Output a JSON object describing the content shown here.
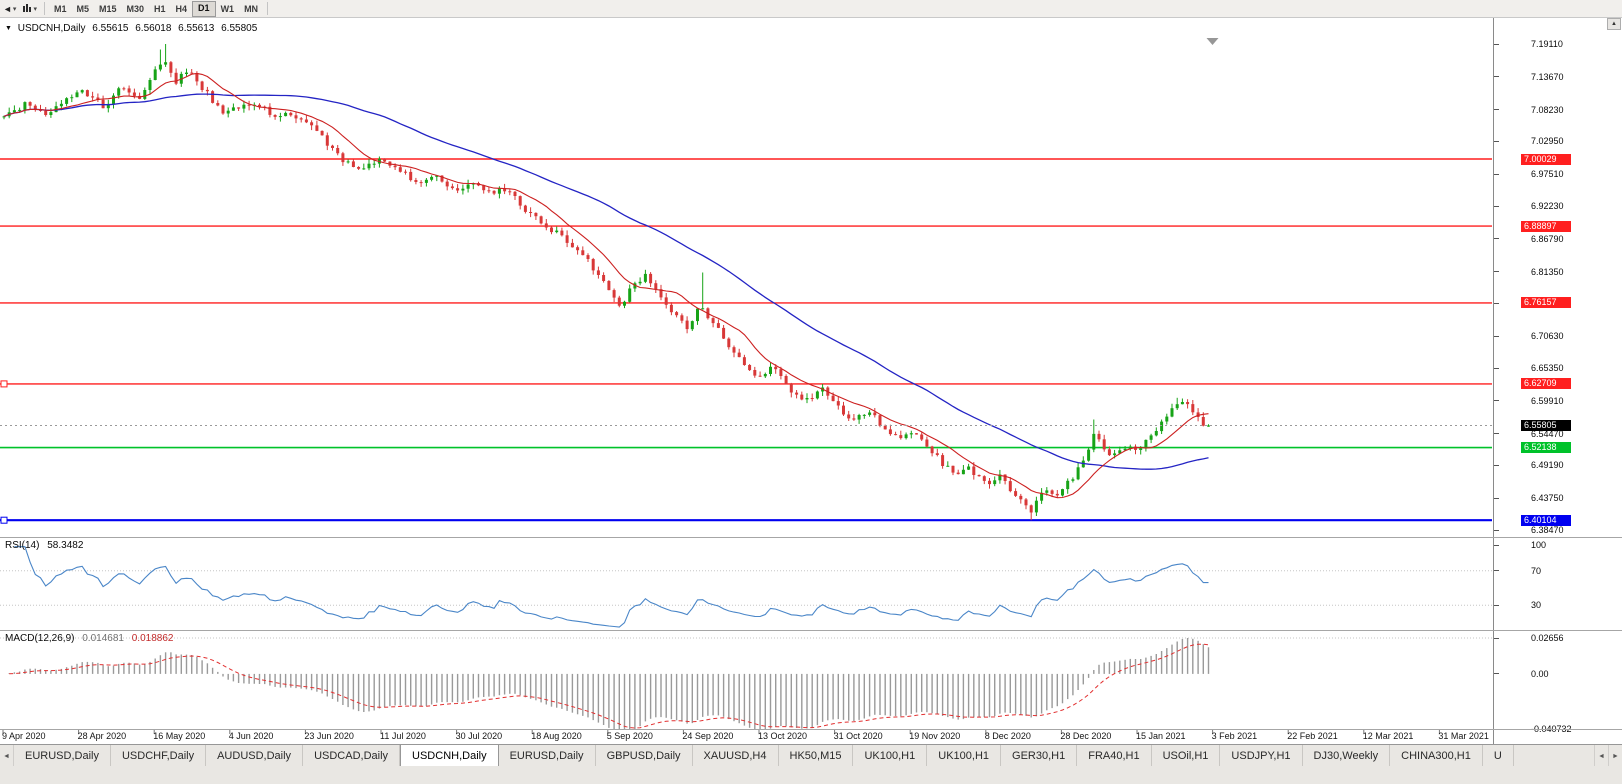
{
  "icons": {
    "dropdown": "▾",
    "title_marker": "▼",
    "scroll_up": "▲",
    "tab_scroll_left": "◄",
    "tab_scroll_right": "►",
    "toolbar_arrow": "◄"
  },
  "toolbar": {
    "timeframes": [
      "M1",
      "M5",
      "M15",
      "M30",
      "H1",
      "H4",
      "D1",
      "W1",
      "MN"
    ],
    "active_timeframe": "D1"
  },
  "chart": {
    "symbol_period": "USDCNH,Daily",
    "open": "6.55615",
    "high": "6.56018",
    "low": "6.55613",
    "close": "6.55805"
  },
  "chart_data": {
    "type": "candlestick",
    "title": "USDCNH,Daily",
    "y_axis": {
      "top_value": 7.1911,
      "bottom_value": 6.3847,
      "ticks": [
        "7.19110",
        "7.13670",
        "7.08230",
        "7.02950",
        "6.97510",
        "6.92230",
        "6.86790",
        "6.81350",
        "6.76070",
        "6.70630",
        "6.65350",
        "6.59910",
        "6.54470",
        "6.49190",
        "6.43750",
        "6.38470"
      ]
    },
    "x_axis": {
      "labels": [
        "9 Apr 2020",
        "28 Apr 2020",
        "16 May 2020",
        "4 Jun 2020",
        "23 Jun 2020",
        "11 Jul 2020",
        "30 Jul 2020",
        "18 Aug 2020",
        "5 Sep 2020",
        "24 Sep 2020",
        "13 Oct 2020",
        "31 Oct 2020",
        "19 Nov 2020",
        "8 Dec 2020",
        "28 Dec 2020",
        "15 Jan 2021",
        "3 Feb 2021",
        "22 Feb 2021",
        "12 Mar 2021",
        "31 Mar 2021"
      ]
    },
    "hlines": [
      {
        "price": 7.00029,
        "display": "7.00029",
        "color": "#ff1f1f",
        "width": 1.4,
        "handle": false
      },
      {
        "price": 6.88897,
        "display": "6.88897",
        "color": "#ff1f1f",
        "width": 1.4,
        "handle": false
      },
      {
        "price": 6.76157,
        "display": "6.76157",
        "color": "#ff1f1f",
        "width": 1.4,
        "handle": false
      },
      {
        "price": 6.62709,
        "display": "6.62709",
        "color": "#ff1f1f",
        "width": 1.4,
        "handle": true
      },
      {
        "price": 6.52138,
        "display": "6.52138",
        "color": "#00c22a",
        "width": 1.6,
        "handle": false
      },
      {
        "price": 6.40104,
        "display": "6.40104",
        "color": "#0000f0",
        "width": 2.2,
        "handle": true
      }
    ],
    "current_price": {
      "value": 6.55805,
      "display": "6.55805",
      "badge_color": "#000000"
    },
    "colors": {
      "up": "#17a317",
      "down": "#d83838",
      "background": "#ffffff"
    },
    "moving_averages": [
      {
        "name": "ma-fast",
        "color": "#cc2020"
      },
      {
        "name": "ma-slow",
        "color": "#2424c4"
      }
    ],
    "series": {
      "count": 232,
      "seed": 42,
      "data_width_frac": 0.814,
      "last_ohlc": [
        6.55615,
        6.56018,
        6.55613,
        6.55805
      ],
      "anchors": [
        [
          0.0,
          7.07
        ],
        [
          0.018,
          7.092
        ],
        [
          0.036,
          7.068
        ],
        [
          0.05,
          7.098
        ],
        [
          0.065,
          7.112
        ],
        [
          0.082,
          7.088
        ],
        [
          0.098,
          7.118
        ],
        [
          0.112,
          7.102
        ],
        [
          0.126,
          7.148
        ],
        [
          0.134,
          7.162
        ],
        [
          0.143,
          7.128
        ],
        [
          0.152,
          7.148
        ],
        [
          0.165,
          7.118
        ],
        [
          0.18,
          7.078
        ],
        [
          0.195,
          7.088
        ],
        [
          0.21,
          7.095
        ],
        [
          0.225,
          7.068
        ],
        [
          0.24,
          7.075
        ],
        [
          0.255,
          7.058
        ],
        [
          0.268,
          7.028
        ],
        [
          0.282,
          6.995
        ],
        [
          0.297,
          6.985
        ],
        [
          0.312,
          7.003
        ],
        [
          0.328,
          6.982
        ],
        [
          0.343,
          6.962
        ],
        [
          0.358,
          6.975
        ],
        [
          0.373,
          6.948
        ],
        [
          0.388,
          6.962
        ],
        [
          0.403,
          6.942
        ],
        [
          0.418,
          6.952
        ],
        [
          0.432,
          6.918
        ],
        [
          0.447,
          6.895
        ],
        [
          0.462,
          6.872
        ],
        [
          0.477,
          6.848
        ],
        [
          0.49,
          6.818
        ],
        [
          0.502,
          6.782
        ],
        [
          0.512,
          6.758
        ],
        [
          0.522,
          6.788
        ],
        [
          0.533,
          6.808
        ],
        [
          0.545,
          6.775
        ],
        [
          0.557,
          6.742
        ],
        [
          0.568,
          6.718
        ],
        [
          0.578,
          6.758
        ],
        [
          0.588,
          6.728
        ],
        [
          0.6,
          6.698
        ],
        [
          0.612,
          6.662
        ],
        [
          0.625,
          6.635
        ],
        [
          0.638,
          6.655
        ],
        [
          0.652,
          6.618
        ],
        [
          0.666,
          6.6
        ],
        [
          0.68,
          6.618
        ],
        [
          0.694,
          6.585
        ],
        [
          0.706,
          6.566
        ],
        [
          0.718,
          6.583
        ],
        [
          0.73,
          6.553
        ],
        [
          0.742,
          6.537
        ],
        [
          0.754,
          6.548
        ],
        [
          0.766,
          6.522
        ],
        [
          0.778,
          6.498
        ],
        [
          0.789,
          6.478
        ],
        [
          0.799,
          6.49
        ],
        [
          0.809,
          6.47
        ],
        [
          0.818,
          6.457
        ],
        [
          0.827,
          6.474
        ],
        [
          0.836,
          6.452
        ],
        [
          0.845,
          6.432
        ],
        [
          0.852,
          6.412
        ],
        [
          0.859,
          6.44
        ],
        [
          0.866,
          6.455
        ],
        [
          0.873,
          6.442
        ],
        [
          0.88,
          6.458
        ],
        [
          0.887,
          6.472
        ],
        [
          0.894,
          6.492
        ],
        [
          0.9,
          6.52
        ],
        [
          0.906,
          6.55
        ],
        [
          0.912,
          6.528
        ],
        [
          0.919,
          6.505
        ],
        [
          0.926,
          6.512
        ],
        [
          0.933,
          6.522
        ],
        [
          0.94,
          6.515
        ],
        [
          0.947,
          6.53
        ],
        [
          0.954,
          6.548
        ],
        [
          0.961,
          6.562
        ],
        [
          0.968,
          6.585
        ],
        [
          0.975,
          6.6
        ],
        [
          0.982,
          6.592
        ],
        [
          0.989,
          6.57
        ],
        [
          1.0,
          6.558
        ]
      ],
      "spikes": [
        {
          "frac": 0.134,
          "high": 7.1911
        },
        {
          "frac": 0.129,
          "high": 7.182
        },
        {
          "frac": 0.578,
          "high": 6.812
        },
        {
          "frac": 0.852,
          "low": 6.40104
        },
        {
          "frac": 0.858,
          "low": 6.408
        },
        {
          "frac": 0.906,
          "high": 6.568
        },
        {
          "frac": 0.975,
          "high": 6.604
        }
      ]
    },
    "rsi": {
      "label": "RSI(14)",
      "value_display": "58.3482",
      "color": "#4a86c8",
      "levels": [
        70,
        30
      ],
      "scale": [
        {
          "v": 100,
          "t": "100"
        },
        {
          "v": 70,
          "t": "70"
        },
        {
          "v": 30,
          "t": "30"
        }
      ]
    },
    "macd": {
      "label": "MACD(12,26,9)",
      "main_display": "0.014681",
      "signal_display": "0.018862",
      "hist_color": "#9a9a9a",
      "signal_color": "#e23030",
      "scale": [
        {
          "v": 0.02656,
          "t": "0.02656"
        },
        {
          "v": 0,
          "t": "0.00"
        },
        {
          "v": -0.040732,
          "t": "-0.040732"
        }
      ]
    }
  },
  "tabs": {
    "active_index": 4,
    "items": [
      "EURUSD,Daily",
      "USDCHF,Daily",
      "AUDUSD,Daily",
      "USDCAD,Daily",
      "USDCNH,Daily",
      "EURUSD,Daily",
      "GBPUSD,Daily",
      "XAUUSD,H4",
      "HK50,M15",
      "UK100,H1",
      "UK100,H1",
      "GER30,H1",
      "FRA40,H1",
      "USOil,H1",
      "USDJPY,H1",
      "DJ30,Weekly",
      "CHINA300,H1",
      "U"
    ]
  }
}
